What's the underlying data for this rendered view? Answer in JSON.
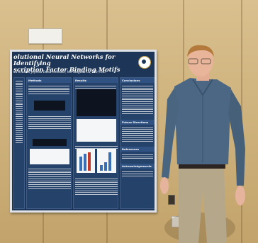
{
  "poster": {
    "title_line1": "olutional Neural Networks for Identifying",
    "title_line2": "scription Factor Binding Motifs",
    "authors": "an Schmitt        Joyeeta Dutta-Moscato, MS        Xinghua Lu, MD, PhD",
    "sections": {
      "methods": "Methods",
      "results": "Results",
      "conclusions": "Conclusions",
      "future": "Future Directions",
      "references": "References",
      "acknowledgements": "Acknowledgements"
    }
  },
  "colors": {
    "poster_bg": "#1d3556",
    "wall": "#cfb37e",
    "shirt": "#4b6784",
    "pants": "#b5a78a"
  }
}
